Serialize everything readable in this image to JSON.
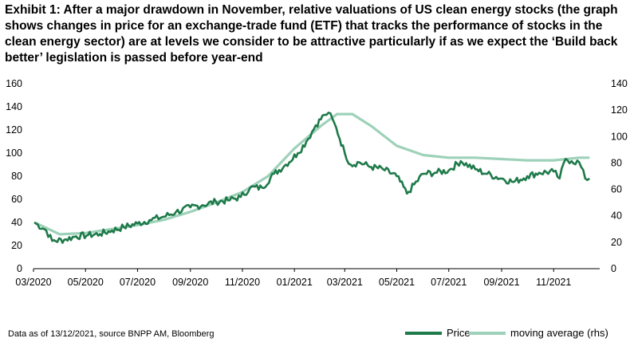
{
  "title": "Exhibit 1: After a major drawdown in November, relative valuations of US clean energy stocks (the graph shows changes in price for an exchange-trade fund (ETF) that tracks the performance of stocks in the clean energy sector) are at levels we consider to be attractive particularly if as we expect the ‘Build back better’ legislation is passed before year-end",
  "footer": "Data as of 13/12/2021, source BNPP AM, Bloomberg",
  "colors": {
    "price": "#1e7a4a",
    "moving_average": "#9ed1b9",
    "axis": "#000000"
  },
  "chart_data": {
    "type": "line",
    "title": "",
    "xlabel": "",
    "ylabel": "",
    "x_tick_labels": [
      "03/2020",
      "05/2020",
      "07/2020",
      "09/2020",
      "11/2020",
      "01/2021",
      "03/2021",
      "05/2021",
      "07/2021",
      "09/2021",
      "11/2021"
    ],
    "y_left_ticks": [
      "0",
      "20",
      "40",
      "60",
      "80",
      "100",
      "120",
      "140",
      "160"
    ],
    "y_right_ticks": [
      "0",
      "20",
      "40",
      "60",
      "80",
      "100",
      "120",
      "140"
    ],
    "ylim_left": [
      0,
      160
    ],
    "ylim_right": [
      0,
      140
    ],
    "grid": false,
    "legend_position": "bottom-right",
    "series": [
      {
        "name": "Price",
        "axis": "left",
        "x": [
          "2020-03-02",
          "2020-03-16",
          "2020-03-23",
          "2020-04-06",
          "2020-04-20",
          "2020-05-04",
          "2020-05-18",
          "2020-06-01",
          "2020-06-15",
          "2020-07-01",
          "2020-07-15",
          "2020-08-01",
          "2020-08-15",
          "2020-09-01",
          "2020-09-15",
          "2020-10-01",
          "2020-10-15",
          "2020-10-30",
          "2020-11-10",
          "2020-11-24",
          "2020-12-08",
          "2020-12-22",
          "2021-01-05",
          "2021-01-15",
          "2021-01-26",
          "2021-02-05",
          "2021-02-10",
          "2021-02-19",
          "2021-03-01",
          "2021-03-08",
          "2021-03-18",
          "2021-04-01",
          "2021-04-15",
          "2021-05-01",
          "2021-05-13",
          "2021-06-01",
          "2021-06-15",
          "2021-07-01",
          "2021-07-15",
          "2021-08-01",
          "2021-08-15",
          "2021-09-01",
          "2021-09-15",
          "2021-10-01",
          "2021-10-15",
          "2021-11-01",
          "2021-11-08",
          "2021-11-15",
          "2021-11-22",
          "2021-12-01",
          "2021-12-08",
          "2021-12-13"
        ],
        "y": [
          40,
          33,
          24,
          25,
          28,
          29,
          30,
          33,
          36,
          39,
          42,
          45,
          49,
          53,
          55,
          58,
          59,
          62,
          70,
          70,
          82,
          90,
          100,
          110,
          124,
          133,
          135,
          122,
          100,
          90,
          92,
          88,
          86,
          80,
          65,
          82,
          83,
          85,
          93,
          86,
          82,
          78,
          75,
          80,
          83,
          84,
          78,
          95,
          93,
          92,
          78,
          78
        ]
      },
      {
        "name": "moving average (rhs)",
        "axis": "right",
        "x": [
          "2020-03-02",
          "2020-04-01",
          "2020-05-01",
          "2020-06-01",
          "2020-07-01",
          "2020-08-01",
          "2020-09-01",
          "2020-10-01",
          "2020-11-01",
          "2020-12-01",
          "2021-01-01",
          "2021-02-01",
          "2021-02-20",
          "2021-03-10",
          "2021-04-01",
          "2021-05-01",
          "2021-06-01",
          "2021-07-01",
          "2021-08-01",
          "2021-09-01",
          "2021-10-01",
          "2021-11-01",
          "2021-12-01",
          "2021-12-13"
        ],
        "y": [
          35,
          26,
          27,
          30,
          33,
          37,
          43,
          50,
          58,
          70,
          91,
          108,
          117,
          117,
          108,
          93,
          86,
          84,
          84,
          83,
          82,
          82,
          84,
          84
        ]
      }
    ]
  }
}
